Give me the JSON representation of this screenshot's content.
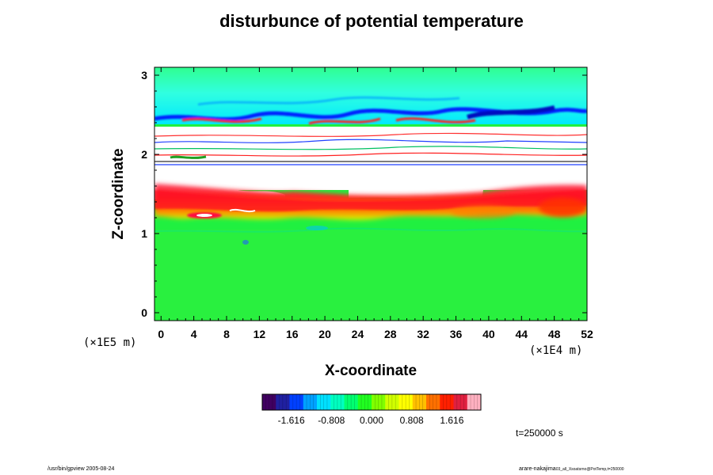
{
  "chart_data": {
    "type": "heatmap",
    "title": "disturbunce of potential temperature",
    "xlabel": "X-coordinate",
    "ylabel": "Z-coordinate",
    "x_scale_label": "(×1E4 m)",
    "y_scale_label": "(×1E5 m)",
    "xlim": [
      -0.8,
      52
    ],
    "ylim": [
      -0.1,
      3.1
    ],
    "x_ticks": [
      0,
      4,
      8,
      12,
      16,
      20,
      24,
      28,
      32,
      36,
      40,
      44,
      48,
      52
    ],
    "x_tick_labels": [
      "0",
      "4",
      "8",
      "12",
      "16",
      "20",
      "24",
      "28",
      "32",
      "36",
      "40",
      "44",
      "48",
      "52"
    ],
    "y_ticks": [
      0,
      1,
      2,
      3
    ],
    "y_tick_labels": [
      "0",
      "1",
      "2",
      "3"
    ],
    "colorbar": {
      "range": [
        -2.2,
        2.2
      ],
      "tick_values": [
        -1.616,
        -0.808,
        0.0,
        0.808,
        1.616
      ],
      "tick_labels": [
        "-1.616",
        "-0.808",
        "0.000",
        "0.808",
        "1.616"
      ],
      "colors": [
        "#400060",
        "#2020a0",
        "#0040ff",
        "#00a0ff",
        "#00e0ff",
        "#00ffc0",
        "#00ff70",
        "#20ff20",
        "#80ff00",
        "#d0ff00",
        "#ffff00",
        "#ffc000",
        "#ff7000",
        "#ff2000",
        "#e02040",
        "#ffb0c0"
      ]
    },
    "time_label": "t=250000 s"
  },
  "footer": {
    "left": "/usr/bin/gpview 2005-08-24",
    "right_main": "arare-nakajima",
    "right_sub": "03_all_Xsoatsrno@PotTemp,t=250000"
  }
}
